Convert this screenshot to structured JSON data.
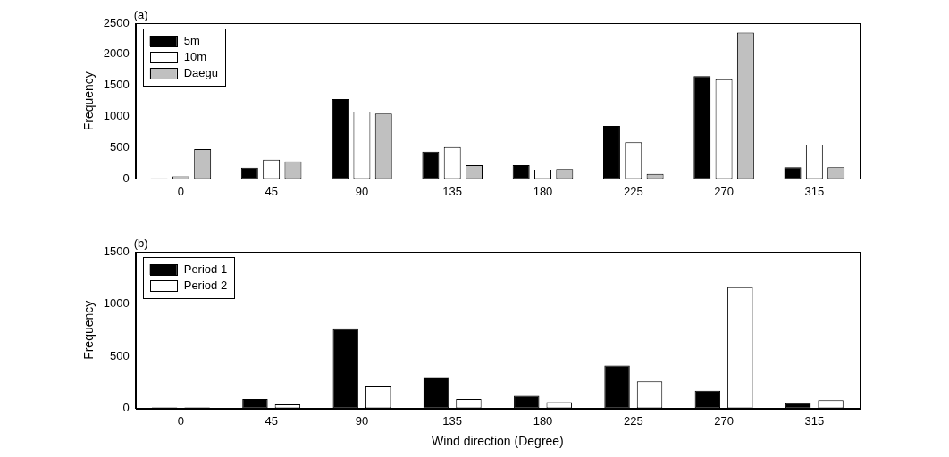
{
  "chart_data": [
    {
      "type": "bar",
      "title": "(a)",
      "ylabel": "Frequency",
      "categories": [
        "0",
        "45",
        "90",
        "135",
        "180",
        "225",
        "270",
        "315"
      ],
      "series": [
        {
          "name": "5m",
          "color": "#000000",
          "values": [
            10,
            180,
            1280,
            440,
            220,
            850,
            1650,
            190
          ]
        },
        {
          "name": "10m",
          "color": "#ffffff",
          "values": [
            40,
            310,
            1080,
            510,
            150,
            590,
            1600,
            550
          ]
        },
        {
          "name": "Daegu",
          "color": "#c0c0c0",
          "values": [
            480,
            280,
            1050,
            220,
            160,
            80,
            2350,
            190
          ]
        }
      ],
      "ylim": [
        0,
        2500
      ],
      "yticks": [
        0,
        500,
        1000,
        1500,
        2000,
        2500
      ],
      "grid": false,
      "legend": "upper left"
    },
    {
      "type": "bar",
      "title": "(b)",
      "xlabel": "Wind direction (Degree)",
      "ylabel": "Frequency",
      "categories": [
        "0",
        "45",
        "90",
        "135",
        "180",
        "225",
        "270",
        "315"
      ],
      "series": [
        {
          "name": "Period 1",
          "color": "#000000",
          "values": [
            10,
            90,
            760,
            300,
            120,
            410,
            170,
            50
          ]
        },
        {
          "name": "Period 2",
          "color": "#ffffff",
          "values": [
            10,
            40,
            210,
            90,
            60,
            260,
            1160,
            80
          ]
        }
      ],
      "ylim": [
        0,
        1500
      ],
      "yticks": [
        0,
        500,
        1000,
        1500
      ],
      "grid": false,
      "legend": "upper left"
    }
  ]
}
